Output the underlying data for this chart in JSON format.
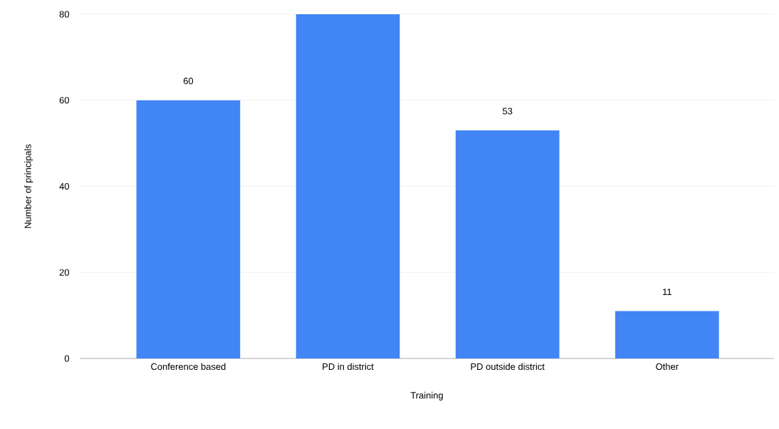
{
  "chart_data": {
    "type": "bar",
    "xlabel": "Training",
    "ylabel": "Number of principals",
    "categories": [
      "Conference based",
      "PD in district",
      "PD outside district",
      "Other"
    ],
    "values": [
      60,
      80,
      53,
      11
    ],
    "color": "#4285f4",
    "value_labels": [
      "60",
      null,
      "53",
      "11"
    ],
    "ylim": [
      0,
      80
    ],
    "yticks": [
      0,
      20,
      40,
      60,
      80
    ],
    "grid": "y"
  }
}
